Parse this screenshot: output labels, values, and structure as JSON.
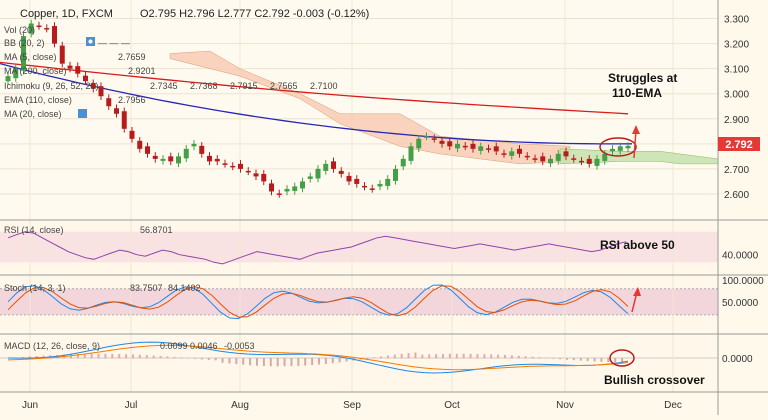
{
  "header": {
    "symbol": "Copper, 1D, FXCM",
    "ohlc": "O2.795 H2.796 L2.777 C2.792 -0.003 (-0.12%)"
  },
  "legends": {
    "vol": "Vol (20)",
    "bb": "BB (20, 2)",
    "ma5": "MA (5, close)",
    "ma5_val": "2.7659",
    "ma200": "MA (200, close)",
    "ma200_val": "2.9201",
    "ichimoku": "Ichimoku (9, 26, 52, 26)",
    "ichi_vals": [
      "2.7345",
      "2.7368",
      "2.7915",
      "2.7565",
      "2.7100"
    ],
    "ema": "EMA (110, close)",
    "ema_val": "2.7956",
    "ma20": "MA (20, close)",
    "rsi": "RSI (14, close)",
    "rsi_val": "56.8701",
    "stoch": "Stoch (14, 3, 1)",
    "stoch_k": "83.7507",
    "stoch_d": "84.1402",
    "macd": "MACD (12, 26, close, 9)",
    "macd_vals": [
      "0.0099",
      "0.0046",
      "-0.0053"
    ]
  },
  "annotations": {
    "struggles": [
      "Struggles at",
      "110-EMA"
    ],
    "rsi": "RSI above 50",
    "macd": "Bullish crossover"
  },
  "price_tag": "2.792",
  "colors": {
    "up": "#43a047",
    "down": "#b71c1c",
    "ema": "#2626b8",
    "ma200": "#d81b1b",
    "cloud_bear": "#f7c9b0",
    "cloud_bull": "#c8e2b0",
    "rsi": "#8e44ad",
    "stoch_k": "#1e88e5",
    "stoch_d": "#e65100",
    "macd": "#1e88e5",
    "signal": "#f57c00",
    "annotation": "#e53935"
  },
  "chart_data": [
    {
      "type": "candlestick",
      "title": "Copper, 1D, FXCM",
      "x": [
        "Jun",
        "Jul",
        "Aug",
        "Sep",
        "Oct",
        "Nov",
        "Dec"
      ],
      "y_ticks": [
        3.3,
        3.2,
        3.1,
        3.0,
        2.9,
        2.8,
        2.7,
        2.6
      ],
      "ylim": [
        2.52,
        3.35
      ],
      "close_approx": [
        3.07,
        3.1,
        3.23,
        3.28,
        3.27,
        3.26,
        3.2,
        3.12,
        3.1,
        3.08,
        3.05,
        3.02,
        2.99,
        2.95,
        2.92,
        2.86,
        2.82,
        2.78,
        2.76,
        2.74,
        2.74,
        2.73,
        2.75,
        2.78,
        2.8,
        2.76,
        2.73,
        2.73,
        2.72,
        2.71,
        2.7,
        2.69,
        2.67,
        2.65,
        2.61,
        2.6,
        2.62,
        2.63,
        2.65,
        2.67,
        2.7,
        2.72,
        2.7,
        2.68,
        2.65,
        2.64,
        2.63,
        2.62,
        2.64,
        2.66,
        2.7,
        2.74,
        2.79,
        2.82,
        2.83,
        2.82,
        2.8,
        2.79,
        2.8,
        2.79,
        2.78,
        2.79,
        2.78,
        2.77,
        2.76,
        2.77,
        2.76,
        2.75,
        2.74,
        2.73,
        2.74,
        2.76,
        2.75,
        2.74,
        2.73,
        2.72,
        2.74,
        2.76,
        2.78,
        2.79,
        2.792
      ],
      "series": [
        {
          "name": "EMA (110, close)",
          "last": 2.7956
        },
        {
          "name": "MA (200, close)",
          "last": 2.9201
        },
        {
          "name": "MA (5, close)",
          "last": 2.7659
        }
      ]
    },
    {
      "type": "line",
      "title": "RSI (14, close)",
      "y_ticks": [
        40.0
      ],
      "last": 56.8701,
      "values": [
        62,
        66,
        70,
        68,
        62,
        56,
        50,
        44,
        40,
        36,
        34,
        38,
        42,
        46,
        44,
        40,
        38,
        42,
        46,
        44,
        40,
        38,
        36,
        34,
        30,
        28,
        32,
        36,
        40,
        44,
        42,
        40,
        38,
        36,
        34,
        38,
        42,
        44,
        46,
        48,
        50,
        54,
        58,
        62,
        64,
        62,
        60,
        58,
        56,
        54,
        52,
        50,
        48,
        50,
        52,
        54,
        52,
        50,
        48,
        46,
        48,
        50,
        52,
        54,
        52,
        50,
        48,
        46,
        44,
        46,
        50,
        54,
        56.87
      ]
    },
    {
      "type": "line",
      "title": "Stoch (14, 3, 1)",
      "y_ticks": [
        100.0,
        50.0
      ],
      "last_k": 83.7507,
      "last_d": 84.1402
    },
    {
      "type": "line",
      "title": "MACD (12, 26, close, 9)",
      "y_ticks": [
        0.0
      ],
      "macd": 0.0099,
      "signal": 0.0046,
      "histogram": -0.0053
    }
  ]
}
